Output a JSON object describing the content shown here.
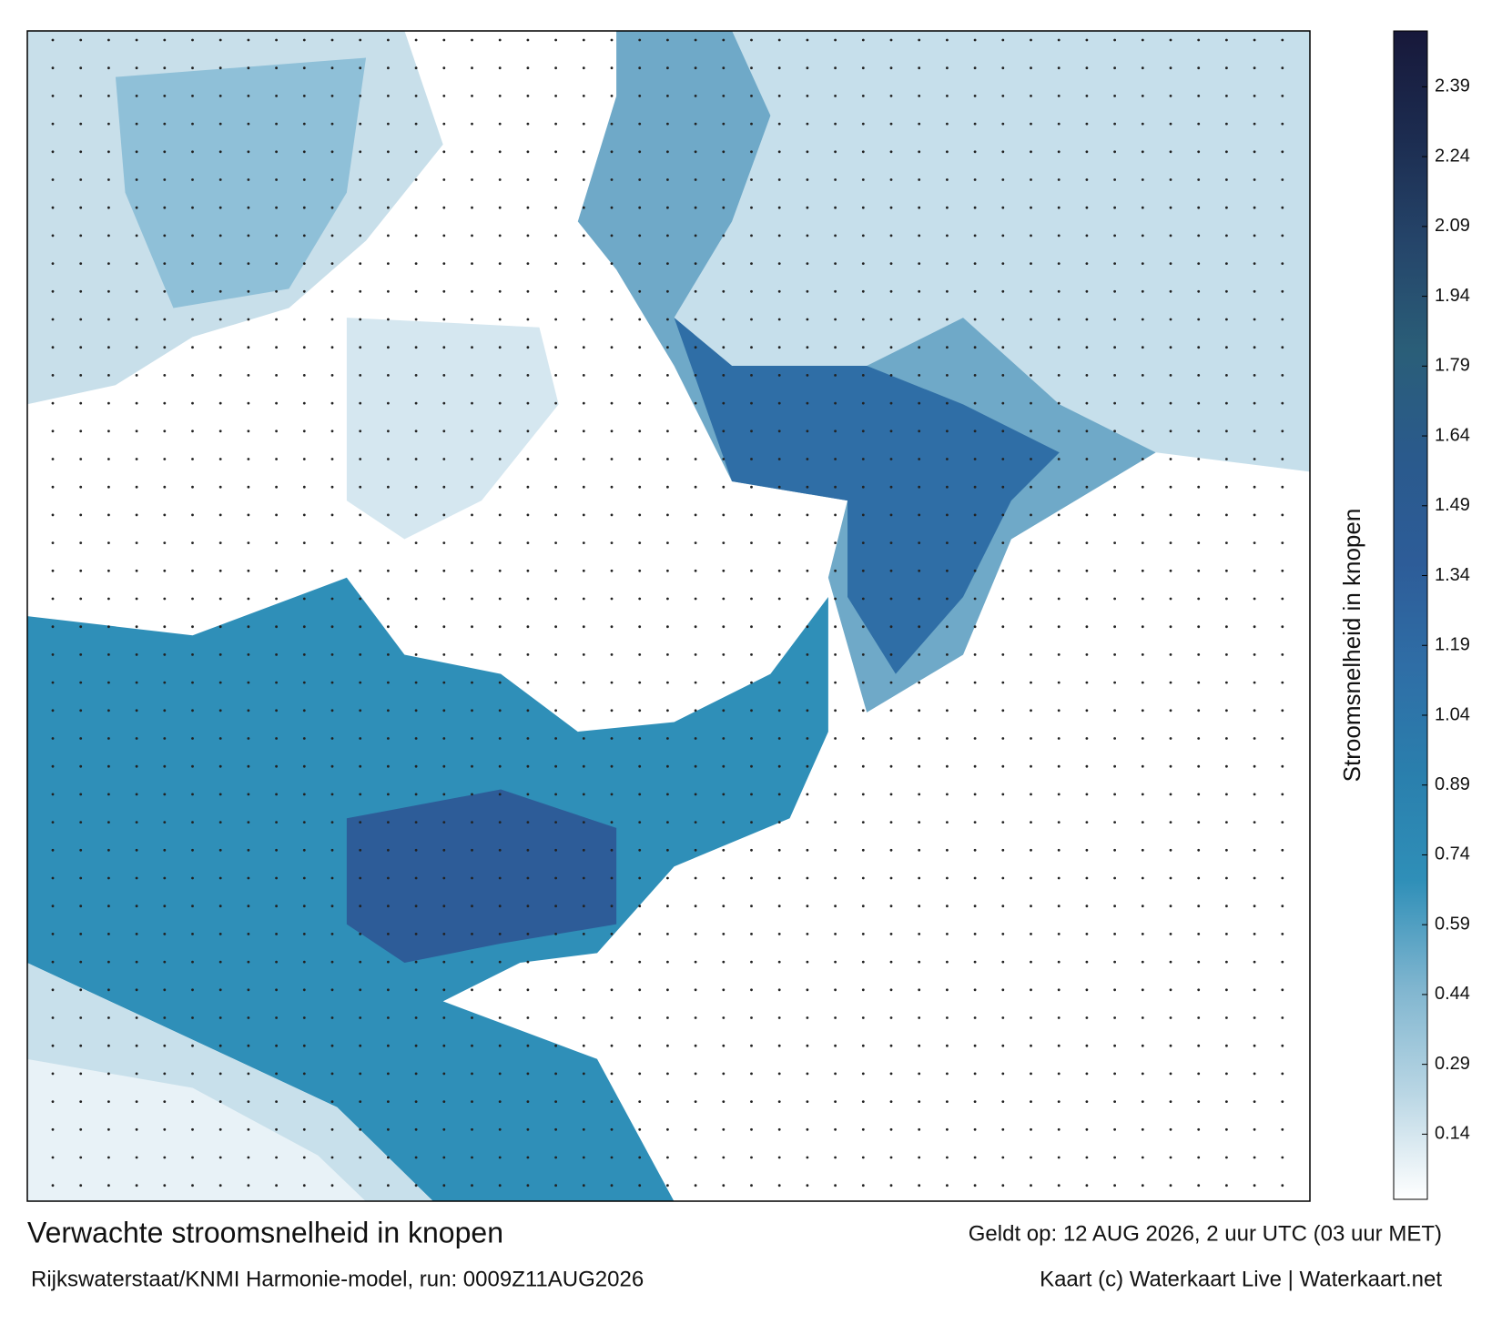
{
  "title": "Verwachte stroomsnelheid in knopen",
  "subtitle": "Rijkswaterstaat/KNMI Harmonie-model, run: 0009Z11AUG2026",
  "valid_time": "Geldt op: 12 AUG 2026, 2 uur UTC (03 uur MET)",
  "credit": "Kaart (c) Waterkaart Live | Waterkaart.net",
  "colorbar": {
    "label": "Stroomsnelheid in knopen",
    "lim": [
      0,
      2.51
    ],
    "ticks": [
      0.14,
      0.29,
      0.44,
      0.59,
      0.74,
      0.89,
      1.04,
      1.19,
      1.34,
      1.49,
      1.64,
      1.79,
      1.94,
      2.09,
      2.24,
      2.39
    ],
    "colors": [
      "#ffffff",
      "#b9d6e4",
      "#7fb5cf",
      "#2f8fb8",
      "#2a7fad",
      "#2f6ea6",
      "#2d5c98",
      "#2a5a8c",
      "#2a5e78",
      "#25456a",
      "#1c2c50",
      "#17183a"
    ]
  }
}
